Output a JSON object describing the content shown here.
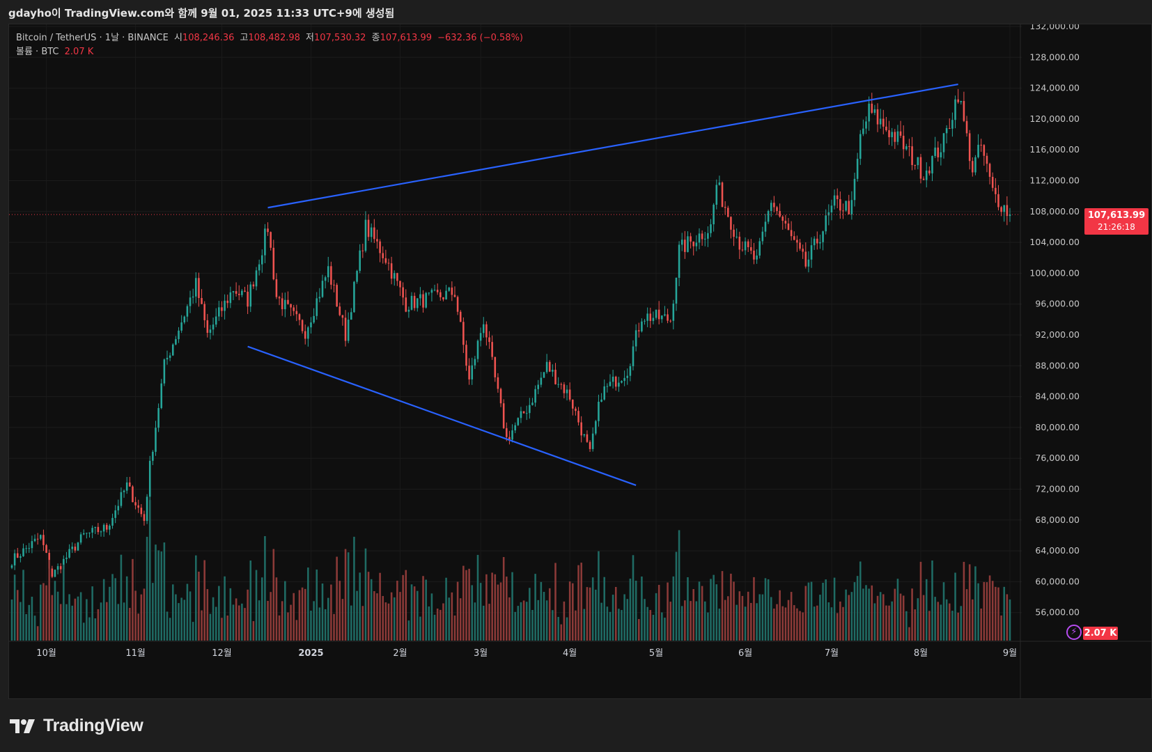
{
  "header": {
    "caption": "gdayho이 TradingView.com와 함께 9월 01, 2025 11:33 UTC+9에 생성됨"
  },
  "legend": {
    "symbol": "Bitcoin / TetherUS · 1날 · BINANCE",
    "open_label": "시",
    "open": "108,246.36",
    "high_label": "고",
    "high": "108,482.98",
    "low_label": "저",
    "low": "107,530.32",
    "close_label": "종",
    "close": "107,613.99",
    "change": "−632.36 (−0.58%)",
    "volume_label": "볼륨 · BTC",
    "volume": "2.07 K"
  },
  "price_tag": {
    "price": "107,613.99",
    "countdown": "21:26:18"
  },
  "volume_tag": "2.07 K",
  "brand": {
    "name": "TradingView"
  },
  "colors": {
    "up": "#26a69a",
    "down": "#ef5350",
    "up_vol": "#1f6b64",
    "down_vol": "#8c3a38",
    "trendline": "#2962ff",
    "last_price": "#f23645",
    "background": "#0f0f0f"
  },
  "chart_data": {
    "type": "candlestick",
    "symbol": "Bitcoin / TetherUS",
    "interval": "1날",
    "exchange": "BINANCE",
    "ylim": [
      52000,
      132000
    ],
    "y_ticks": [
      "132,000.00",
      "128,000.00",
      "124,000.00",
      "120,000.00",
      "116,000.00",
      "112,000.00",
      "108,000.00",
      "104,000.00",
      "100,000.00",
      "96,000.00",
      "92,000.00",
      "88,000.00",
      "84,000.00",
      "80,000.00",
      "76,000.00",
      "72,000.00",
      "68,000.00",
      "64,000.00",
      "60,000.00",
      "56,000.00"
    ],
    "x_labels": [
      "10월",
      "11월",
      "12월",
      "2025",
      "2월",
      "3월",
      "4월",
      "5월",
      "6월",
      "7월",
      "8월",
      "9월"
    ],
    "date_range": [
      "2024-09-19",
      "2025-09-01"
    ],
    "anchors": [
      [
        "2024-09-19",
        62800
      ],
      [
        "2024-09-29",
        65800
      ],
      [
        "2024-10-03",
        60800
      ],
      [
        "2024-10-14",
        66000
      ],
      [
        "2024-10-22",
        67000
      ],
      [
        "2024-10-29",
        72500
      ],
      [
        "2024-11-04",
        68000
      ],
      [
        "2024-11-06",
        75000
      ],
      [
        "2024-11-11",
        88000
      ],
      [
        "2024-11-13",
        90000
      ],
      [
        "2024-11-22",
        98500
      ],
      [
        "2024-11-26",
        92000
      ],
      [
        "2024-12-05",
        98000
      ],
      [
        "2024-12-10",
        96500
      ],
      [
        "2024-12-17",
        106000
      ],
      [
        "2024-12-20",
        97000
      ],
      [
        "2024-12-30",
        92500
      ],
      [
        "2025-01-07",
        100500
      ],
      [
        "2025-01-13",
        92000
      ],
      [
        "2025-01-20",
        106000
      ],
      [
        "2025-01-27",
        102000
      ],
      [
        "2025-02-03",
        96000
      ],
      [
        "2025-02-20",
        97500
      ],
      [
        "2025-02-25",
        86000
      ],
      [
        "2025-03-02",
        94000
      ],
      [
        "2025-03-10",
        78500
      ],
      [
        "2025-03-18",
        83000
      ],
      [
        "2025-03-24",
        88000
      ],
      [
        "2025-04-01",
        84000
      ],
      [
        "2025-04-08",
        76500
      ],
      [
        "2025-04-12",
        84500
      ],
      [
        "2025-04-21",
        87500
      ],
      [
        "2025-04-26",
        94500
      ],
      [
        "2025-05-06",
        94000
      ],
      [
        "2025-05-09",
        103000
      ],
      [
        "2025-05-20",
        106000
      ],
      [
        "2025-05-22",
        111500
      ],
      [
        "2025-05-30",
        104000
      ],
      [
        "2025-06-05",
        101500
      ],
      [
        "2025-06-10",
        109500
      ],
      [
        "2025-06-17",
        104500
      ],
      [
        "2025-06-22",
        101000
      ],
      [
        "2025-07-02",
        109000
      ],
      [
        "2025-07-08",
        108500
      ],
      [
        "2025-07-11",
        117500
      ],
      [
        "2025-07-14",
        121000
      ],
      [
        "2025-07-25",
        117000
      ],
      [
        "2025-08-02",
        113000
      ],
      [
        "2025-08-09",
        117000
      ],
      [
        "2025-08-14",
        123500
      ],
      [
        "2025-08-19",
        113500
      ],
      [
        "2025-08-22",
        116500
      ],
      [
        "2025-08-26",
        110500
      ],
      [
        "2025-09-01",
        107600
      ]
    ],
    "trendlines": [
      {
        "from": [
          "2024-12-17",
          108500
        ],
        "to": [
          "2025-08-14",
          124500
        ]
      },
      {
        "from": [
          "2024-12-10",
          90500
        ],
        "to": [
          "2025-04-24",
          72500
        ]
      }
    ],
    "last_price": 107613.99
  }
}
